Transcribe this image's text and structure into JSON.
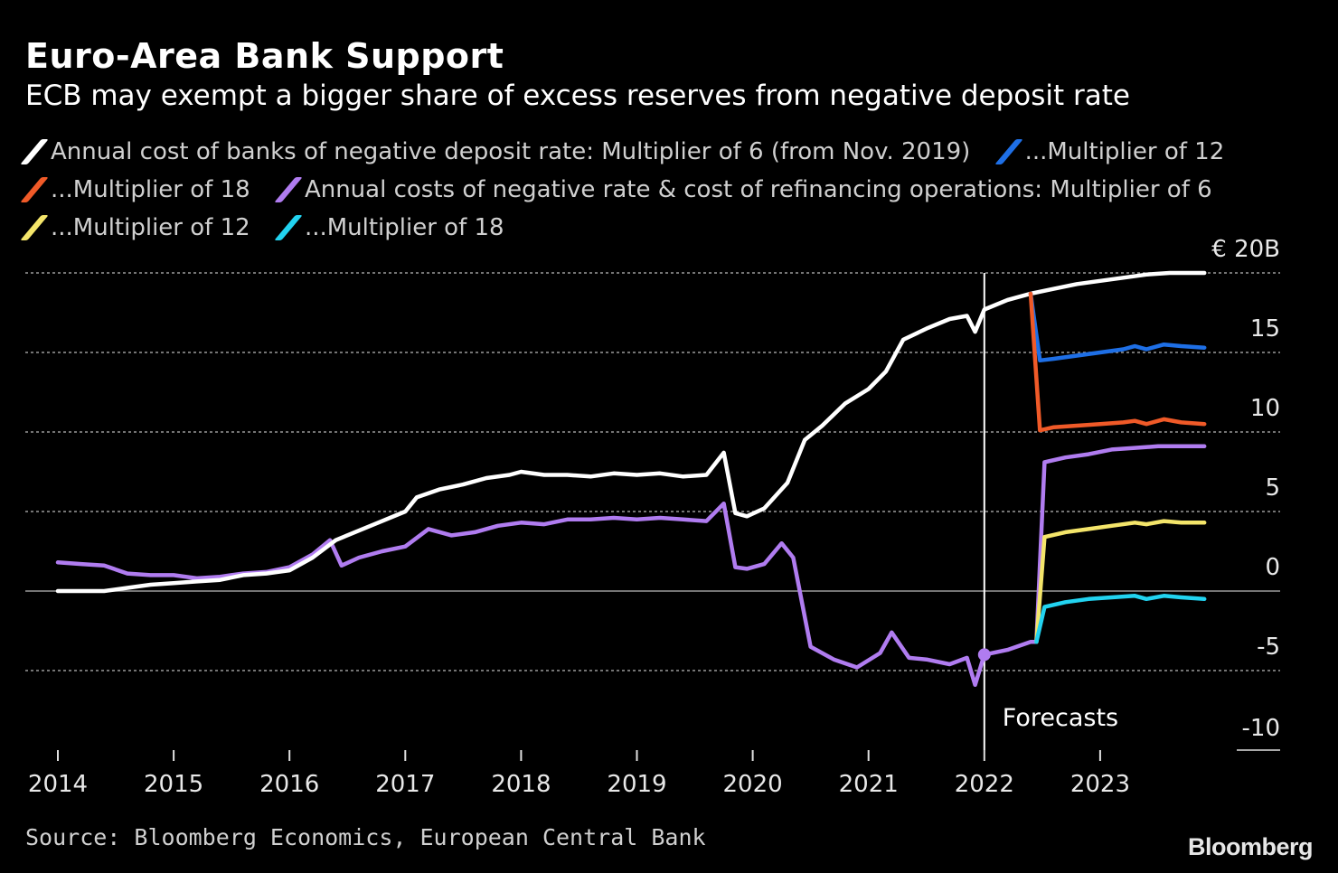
{
  "header": {
    "title": "Euro-Area Bank Support",
    "subtitle": "ECB may exempt a bigger share of excess reserves from negative deposit rate"
  },
  "legend": [
    {
      "label": "Annual cost of banks of negative deposit rate: Multiplier of 6 (from Nov. 2019)",
      "color": "#ffffff"
    },
    {
      "label": "...Multiplier of 12",
      "color": "#1e6fe6"
    },
    {
      "label": "...Multiplier of 18",
      "color": "#f05a28"
    },
    {
      "label": "Annual costs of negative rate & cost of refinancing operations: Multiplier of 6",
      "color": "#b07cf0"
    },
    {
      "label": "...Multiplier of 12",
      "color": "#f4e56a"
    },
    {
      "label": "...Multiplier of 18",
      "color": "#22d3f0"
    }
  ],
  "footer": {
    "source": "Source: Bloomberg Economics, European Central Bank",
    "logo": "Bloomberg"
  },
  "chart_data": {
    "type": "line",
    "x_range": [
      2014.0,
      2024.0
    ],
    "x_ticks": [
      "2014",
      "2015",
      "2016",
      "2017",
      "2018",
      "2019",
      "2020",
      "2021",
      "2022",
      "2023"
    ],
    "y_range": [
      -10,
      20
    ],
    "y_ticks": [
      {
        "value": 20,
        "label": "€ 20B"
      },
      {
        "value": 15,
        "label": "15"
      },
      {
        "value": 10,
        "label": "10"
      },
      {
        "value": 5,
        "label": "5"
      },
      {
        "value": 0,
        "label": "0"
      },
      {
        "value": -5,
        "label": "-5"
      },
      {
        "value": -10,
        "label": "-10"
      }
    ],
    "forecast_start": 2022.0,
    "forecast_label": "Forecasts",
    "grid": true,
    "legend_position": "top",
    "series": [
      {
        "color": "#ffffff",
        "points": [
          [
            2014.0,
            0.0
          ],
          [
            2014.2,
            0.0
          ],
          [
            2014.4,
            0.0
          ],
          [
            2014.6,
            0.2
          ],
          [
            2014.8,
            0.4
          ],
          [
            2015.0,
            0.5
          ],
          [
            2015.2,
            0.6
          ],
          [
            2015.4,
            0.7
          ],
          [
            2015.6,
            1.0
          ],
          [
            2015.8,
            1.1
          ],
          [
            2016.0,
            1.3
          ],
          [
            2016.2,
            2.1
          ],
          [
            2016.4,
            3.2
          ],
          [
            2016.6,
            3.8
          ],
          [
            2016.8,
            4.4
          ],
          [
            2017.0,
            5.0
          ],
          [
            2017.1,
            5.9
          ],
          [
            2017.3,
            6.4
          ],
          [
            2017.5,
            6.7
          ],
          [
            2017.7,
            7.1
          ],
          [
            2017.9,
            7.3
          ],
          [
            2018.0,
            7.5
          ],
          [
            2018.2,
            7.3
          ],
          [
            2018.4,
            7.3
          ],
          [
            2018.6,
            7.2
          ],
          [
            2018.8,
            7.4
          ],
          [
            2019.0,
            7.3
          ],
          [
            2019.2,
            7.4
          ],
          [
            2019.4,
            7.2
          ],
          [
            2019.6,
            7.3
          ],
          [
            2019.75,
            8.7
          ],
          [
            2019.85,
            4.9
          ],
          [
            2019.95,
            4.7
          ],
          [
            2020.1,
            5.2
          ],
          [
            2020.3,
            6.8
          ],
          [
            2020.45,
            9.5
          ],
          [
            2020.6,
            10.4
          ],
          [
            2020.8,
            11.8
          ],
          [
            2021.0,
            12.7
          ],
          [
            2021.15,
            13.8
          ],
          [
            2021.3,
            15.8
          ],
          [
            2021.5,
            16.5
          ],
          [
            2021.7,
            17.1
          ],
          [
            2021.85,
            17.3
          ],
          [
            2021.92,
            16.3
          ],
          [
            2022.0,
            17.7
          ],
          [
            2022.2,
            18.3
          ],
          [
            2022.4,
            18.7
          ],
          [
            2022.6,
            19.0
          ],
          [
            2022.8,
            19.3
          ],
          [
            2023.0,
            19.5
          ],
          [
            2023.2,
            19.7
          ],
          [
            2023.4,
            19.9
          ],
          [
            2023.6,
            20.0
          ],
          [
            2023.9,
            20.0
          ]
        ]
      },
      {
        "color": "#1e6fe6",
        "points": [
          [
            2022.4,
            18.7
          ],
          [
            2022.48,
            14.5
          ],
          [
            2022.6,
            14.6
          ],
          [
            2022.8,
            14.8
          ],
          [
            2023.0,
            15.0
          ],
          [
            2023.2,
            15.2
          ],
          [
            2023.3,
            15.4
          ],
          [
            2023.4,
            15.2
          ],
          [
            2023.55,
            15.5
          ],
          [
            2023.7,
            15.4
          ],
          [
            2023.9,
            15.3
          ]
        ]
      },
      {
        "color": "#f05a28",
        "points": [
          [
            2022.4,
            18.7
          ],
          [
            2022.48,
            10.1
          ],
          [
            2022.6,
            10.3
          ],
          [
            2022.8,
            10.4
          ],
          [
            2023.0,
            10.5
          ],
          [
            2023.2,
            10.6
          ],
          [
            2023.3,
            10.7
          ],
          [
            2023.4,
            10.5
          ],
          [
            2023.55,
            10.8
          ],
          [
            2023.7,
            10.6
          ],
          [
            2023.9,
            10.5
          ]
        ]
      },
      {
        "color": "#b07cf0",
        "points": [
          [
            2014.0,
            1.8
          ],
          [
            2014.2,
            1.7
          ],
          [
            2014.4,
            1.6
          ],
          [
            2014.6,
            1.1
          ],
          [
            2014.8,
            1.0
          ],
          [
            2015.0,
            1.0
          ],
          [
            2015.2,
            0.8
          ],
          [
            2015.4,
            0.9
          ],
          [
            2015.6,
            1.1
          ],
          [
            2015.8,
            1.2
          ],
          [
            2016.0,
            1.5
          ],
          [
            2016.2,
            2.3
          ],
          [
            2016.35,
            3.2
          ],
          [
            2016.45,
            1.6
          ],
          [
            2016.6,
            2.1
          ],
          [
            2016.8,
            2.5
          ],
          [
            2017.0,
            2.8
          ],
          [
            2017.2,
            3.9
          ],
          [
            2017.4,
            3.5
          ],
          [
            2017.6,
            3.7
          ],
          [
            2017.8,
            4.1
          ],
          [
            2018.0,
            4.3
          ],
          [
            2018.2,
            4.2
          ],
          [
            2018.4,
            4.5
          ],
          [
            2018.6,
            4.5
          ],
          [
            2018.8,
            4.6
          ],
          [
            2019.0,
            4.5
          ],
          [
            2019.2,
            4.6
          ],
          [
            2019.4,
            4.5
          ],
          [
            2019.6,
            4.4
          ],
          [
            2019.75,
            5.5
          ],
          [
            2019.85,
            1.5
          ],
          [
            2019.95,
            1.4
          ],
          [
            2020.1,
            1.7
          ],
          [
            2020.25,
            3.0
          ],
          [
            2020.35,
            2.1
          ],
          [
            2020.5,
            -3.5
          ],
          [
            2020.7,
            -4.3
          ],
          [
            2020.9,
            -4.8
          ],
          [
            2021.1,
            -3.9
          ],
          [
            2021.2,
            -2.6
          ],
          [
            2021.35,
            -4.2
          ],
          [
            2021.5,
            -4.3
          ],
          [
            2021.7,
            -4.6
          ],
          [
            2021.85,
            -4.2
          ],
          [
            2021.92,
            -5.9
          ],
          [
            2022.0,
            -4.0
          ],
          [
            2022.2,
            -3.7
          ],
          [
            2022.4,
            -3.2
          ],
          [
            2022.45,
            -3.2
          ],
          [
            2022.52,
            8.1
          ],
          [
            2022.7,
            8.4
          ],
          [
            2022.9,
            8.6
          ],
          [
            2023.1,
            8.9
          ],
          [
            2023.3,
            9.0
          ],
          [
            2023.5,
            9.1
          ],
          [
            2023.7,
            9.1
          ],
          [
            2023.9,
            9.1
          ]
        ]
      },
      {
        "color": "#f4e56a",
        "points": [
          [
            2022.45,
            -3.2
          ],
          [
            2022.52,
            3.4
          ],
          [
            2022.7,
            3.7
          ],
          [
            2022.9,
            3.9
          ],
          [
            2023.1,
            4.1
          ],
          [
            2023.3,
            4.3
          ],
          [
            2023.4,
            4.2
          ],
          [
            2023.55,
            4.4
          ],
          [
            2023.7,
            4.3
          ],
          [
            2023.9,
            4.3
          ]
        ]
      },
      {
        "color": "#22d3f0",
        "points": [
          [
            2022.45,
            -3.2
          ],
          [
            2022.52,
            -1.0
          ],
          [
            2022.7,
            -0.7
          ],
          [
            2022.9,
            -0.5
          ],
          [
            2023.1,
            -0.4
          ],
          [
            2023.3,
            -0.3
          ],
          [
            2023.4,
            -0.5
          ],
          [
            2023.55,
            -0.3
          ],
          [
            2023.7,
            -0.4
          ],
          [
            2023.9,
            -0.5
          ]
        ]
      }
    ],
    "marker": {
      "x": 2022.0,
      "y": -4.0,
      "color": "#b07cf0"
    }
  }
}
